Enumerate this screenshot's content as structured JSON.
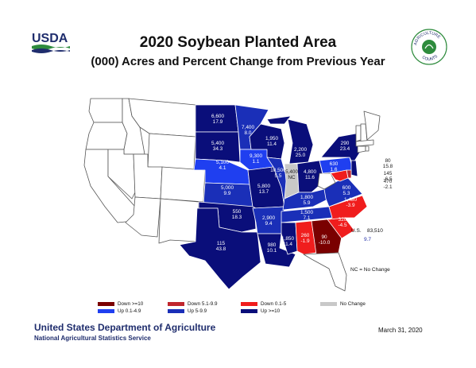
{
  "header": {
    "logo_text": "USDA",
    "title": "2020 Soybean Planted Area",
    "subtitle": "(000) Acres and Percent Change from Previous Year",
    "seal_text": "AGRICULTURE COUNTS"
  },
  "colors": {
    "down_ge_10": "#7a0000",
    "down_5_9": "#c0262d",
    "down_0_5": "#f01d1d",
    "no_change": "#c8c8c8",
    "up_0_5": "#1f3ff0",
    "up_5_10": "#1a2fb8",
    "up_ge_10": "#0a0e7a",
    "no_data": "#ffffff"
  },
  "states": [
    {
      "code": "ND",
      "acres": "6,600",
      "change": "17.9",
      "category": "up_ge_10"
    },
    {
      "code": "SD",
      "acres": "5,400",
      "change": "34.3",
      "category": "up_ge_10"
    },
    {
      "code": "MN",
      "acres": "7,400",
      "change": "8.0",
      "category": "up_5_10"
    },
    {
      "code": "WI",
      "acres": "1,950",
      "change": "11.4",
      "category": "up_ge_10"
    },
    {
      "code": "MI",
      "acres": "2,200",
      "change": "25.0",
      "category": "up_ge_10"
    },
    {
      "code": "NE",
      "acres": "5,100",
      "change": "4.1",
      "category": "up_0_5"
    },
    {
      "code": "IA",
      "acres": "9,300",
      "change": "1.1",
      "category": "up_0_5"
    },
    {
      "code": "IL",
      "acres": "10,500",
      "change": "5.5",
      "category": "up_5_10"
    },
    {
      "code": "IN",
      "acres": "5,400",
      "change": "NC",
      "category": "no_change"
    },
    {
      "code": "OH",
      "acres": "4,800",
      "change": "11.6",
      "category": "up_ge_10"
    },
    {
      "code": "KS",
      "acres": "5,000",
      "change": "9.9",
      "category": "up_5_10"
    },
    {
      "code": "MO",
      "acres": "5,800",
      "change": "13.7",
      "category": "up_ge_10"
    },
    {
      "code": "KY",
      "acres": "1,800",
      "change": "5.9",
      "category": "up_5_10"
    },
    {
      "code": "OK",
      "acres": "550",
      "change": "18.3",
      "category": "up_ge_10"
    },
    {
      "code": "AR",
      "acres": "2,900",
      "change": "9.4",
      "category": "up_5_10"
    },
    {
      "code": "TN",
      "acres": "1,500",
      "change": "7.1",
      "category": "up_5_10"
    },
    {
      "code": "TX",
      "acres": "115",
      "change": "43.8",
      "category": "up_ge_10"
    },
    {
      "code": "LA",
      "acres": "980",
      "change": "10.1",
      "category": "up_ge_10"
    },
    {
      "code": "MS",
      "acres": "1,850",
      "change": "11.4",
      "category": "up_ge_10"
    },
    {
      "code": "AL",
      "acres": "260",
      "change": "-1.9",
      "category": "down_0_5"
    },
    {
      "code": "GA",
      "acres": "90",
      "change": "-10.0",
      "category": "down_ge_10"
    },
    {
      "code": "SC",
      "acres": "320",
      "change": "-4.5",
      "category": "down_0_5"
    },
    {
      "code": "NC",
      "acres": "1,480",
      "change": "-3.9",
      "category": "down_0_5"
    },
    {
      "code": "VA",
      "acres": "600",
      "change": "5.3",
      "category": "up_5_10"
    },
    {
      "code": "PA",
      "acres": "630",
      "change": "1.6",
      "category": "up_0_5"
    },
    {
      "code": "NY",
      "acres": "290",
      "change": "23.4",
      "category": "up_ge_10"
    },
    {
      "code": "NJ",
      "acres": "80",
      "change": "15.8",
      "category": "up_ge_10"
    },
    {
      "code": "MD",
      "acres": "470",
      "change": "-2.1",
      "category": "down_0_5"
    },
    {
      "code": "DE",
      "acres": "145",
      "change": "-6.5",
      "category": "down_5_9"
    }
  ],
  "us_total": {
    "label": "U.S.",
    "acres": "83,510",
    "change": "9.7"
  },
  "nc_note": "NC = No Change",
  "legend": [
    {
      "label": "Down >=10",
      "category": "down_ge_10"
    },
    {
      "label": "Up 0.1-4.9",
      "category": "up_0_5"
    },
    {
      "label": "Down 5.1-9.9",
      "category": "down_5_9"
    },
    {
      "label": "Up 5-9.9",
      "category": "up_5_10"
    },
    {
      "label": "Down 0.1-5",
      "category": "down_0_5"
    },
    {
      "label": "Up >=10",
      "category": "up_ge_10"
    },
    {
      "label": "No Change",
      "category": "no_change"
    }
  ],
  "footer": {
    "department": "United States Department of Agriculture",
    "agency": "National Agricultural Statistics Service",
    "date": "March 31, 2020"
  }
}
